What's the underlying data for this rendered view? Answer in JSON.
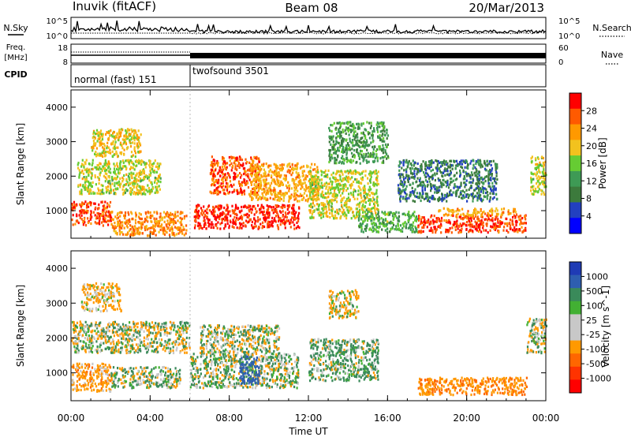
{
  "header": {
    "station": "Inuvik (fitACF)",
    "beam": "Beam 08",
    "date": "20/Mar/2013"
  },
  "noise_panel": {
    "left_label": "N.Sky",
    "right_label": "N.Search",
    "left_ticks": [
      "10^5",
      "10^0"
    ],
    "right_ticks": [
      "10^5",
      "10^0"
    ]
  },
  "freq_panel": {
    "left_label_top": "Freq.",
    "left_label_unit": "[MHz]",
    "left_ticks": [
      "18",
      "8"
    ],
    "right_label": "Nave",
    "right_ticks": [
      "60",
      "0"
    ]
  },
  "cpid_panel": {
    "label": "CPID",
    "modes": [
      {
        "name": "normal (fast) 151",
        "start_hour": 0,
        "end_hour": 6
      },
      {
        "name": "twofsound 3501",
        "start_hour": 6,
        "end_hour": 24
      }
    ]
  },
  "colors": {
    "power_scale": [
      "#0000ff",
      "#2240c0",
      "#3c7a3c",
      "#3e9a55",
      "#66cc33",
      "#f2c21e",
      "#ff9900",
      "#ff5a00",
      "#ff0000"
    ],
    "velocity_scale": [
      "#1f3bb5",
      "#2e5eb0",
      "#3a8a5a",
      "#42b033",
      "#c8c8c8",
      "#c8c8c8",
      "#ff9900",
      "#ff6600",
      "#ff3300",
      "#ff0000"
    ]
  },
  "chart_data": [
    {
      "type": "heatmap",
      "title": "Power",
      "xlabel": "",
      "ylabel": "Slant Range [km]",
      "x_unit": "hours UT",
      "xlim": [
        0,
        24
      ],
      "ylim": [
        200,
        4500
      ],
      "y_ticks": [
        1000,
        2000,
        3000,
        4000
      ],
      "colorbar_label": "Power [dB]",
      "colorbar_ticks": [
        4,
        8,
        12,
        16,
        20,
        24,
        28
      ],
      "colorbar_range": [
        0,
        32
      ],
      "regions": [
        {
          "x": [
            0.0,
            2.0
          ],
          "y": [
            600,
            1300
          ],
          "value": 28
        },
        {
          "x": [
            2.0,
            5.8
          ],
          "y": [
            300,
            1000
          ],
          "value": 24
        },
        {
          "x": [
            0.3,
            4.5
          ],
          "y": [
            1500,
            2500
          ],
          "value": 18
        },
        {
          "x": [
            1.0,
            3.5
          ],
          "y": [
            2600,
            3400
          ],
          "value": 20
        },
        {
          "x": [
            6.2,
            11.5
          ],
          "y": [
            500,
            1200
          ],
          "value": 29
        },
        {
          "x": [
            7.0,
            9.5
          ],
          "y": [
            1500,
            2600
          ],
          "value": 27
        },
        {
          "x": [
            9.0,
            12.5
          ],
          "y": [
            1300,
            2400
          ],
          "value": 22
        },
        {
          "x": [
            12.0,
            15.5
          ],
          "y": [
            800,
            2200
          ],
          "value": 18
        },
        {
          "x": [
            13.0,
            16.0
          ],
          "y": [
            2400,
            3600
          ],
          "value": 12
        },
        {
          "x": [
            14.5,
            17.5
          ],
          "y": [
            400,
            1000
          ],
          "value": 14
        },
        {
          "x": [
            17.5,
            23.0
          ],
          "y": [
            400,
            900
          ],
          "value": 28
        },
        {
          "x": [
            18.5,
            22.5
          ],
          "y": [
            900,
            1100
          ],
          "value": 22
        },
        {
          "x": [
            23.2,
            24.0
          ],
          "y": [
            1500,
            2600
          ],
          "value": 18
        },
        {
          "x": [
            16.5,
            21.5
          ],
          "y": [
            1300,
            2500
          ],
          "value": 9
        }
      ]
    },
    {
      "type": "heatmap",
      "title": "Velocity",
      "xlabel": "Time UT",
      "ylabel": "Slant Range [km]",
      "x_unit": "hours UT",
      "xlim": [
        0,
        24
      ],
      "ylim": [
        200,
        4500
      ],
      "x_ticks": [
        "00:00",
        "04:00",
        "08:00",
        "12:00",
        "16:00",
        "20:00",
        "00:00"
      ],
      "y_ticks": [
        1000,
        2000,
        3000,
        4000
      ],
      "colorbar_label": "Velocity [m s^-1]",
      "colorbar_ticks": [
        1000,
        500,
        100,
        25,
        -25,
        -100,
        -500,
        -1000
      ],
      "regions": [
        {
          "x": [
            0.0,
            2.0
          ],
          "y": [
            500,
            1300
          ],
          "value": -300
        },
        {
          "x": [
            0.0,
            6.0
          ],
          "y": [
            1600,
            2500
          ],
          "value": 0
        },
        {
          "x": [
            2.0,
            5.5
          ],
          "y": [
            600,
            1200
          ],
          "value": 50
        },
        {
          "x": [
            6.0,
            11.5
          ],
          "y": [
            600,
            1600
          ],
          "value": 80
        },
        {
          "x": [
            8.5,
            9.5
          ],
          "y": [
            700,
            1500
          ],
          "value": 700
        },
        {
          "x": [
            6.5,
            10.5
          ],
          "y": [
            1600,
            2400
          ],
          "value": 0
        },
        {
          "x": [
            12.0,
            15.5
          ],
          "y": [
            800,
            2000
          ],
          "value": 150
        },
        {
          "x": [
            13.0,
            14.5
          ],
          "y": [
            2600,
            3400
          ],
          "value": -150
        },
        {
          "x": [
            17.5,
            23.0
          ],
          "y": [
            400,
            900
          ],
          "value": -400
        },
        {
          "x": [
            23.0,
            24.0
          ],
          "y": [
            1600,
            2600
          ],
          "value": 0
        },
        {
          "x": [
            0.5,
            2.5
          ],
          "y": [
            2800,
            3600
          ],
          "value": -200
        }
      ]
    }
  ]
}
